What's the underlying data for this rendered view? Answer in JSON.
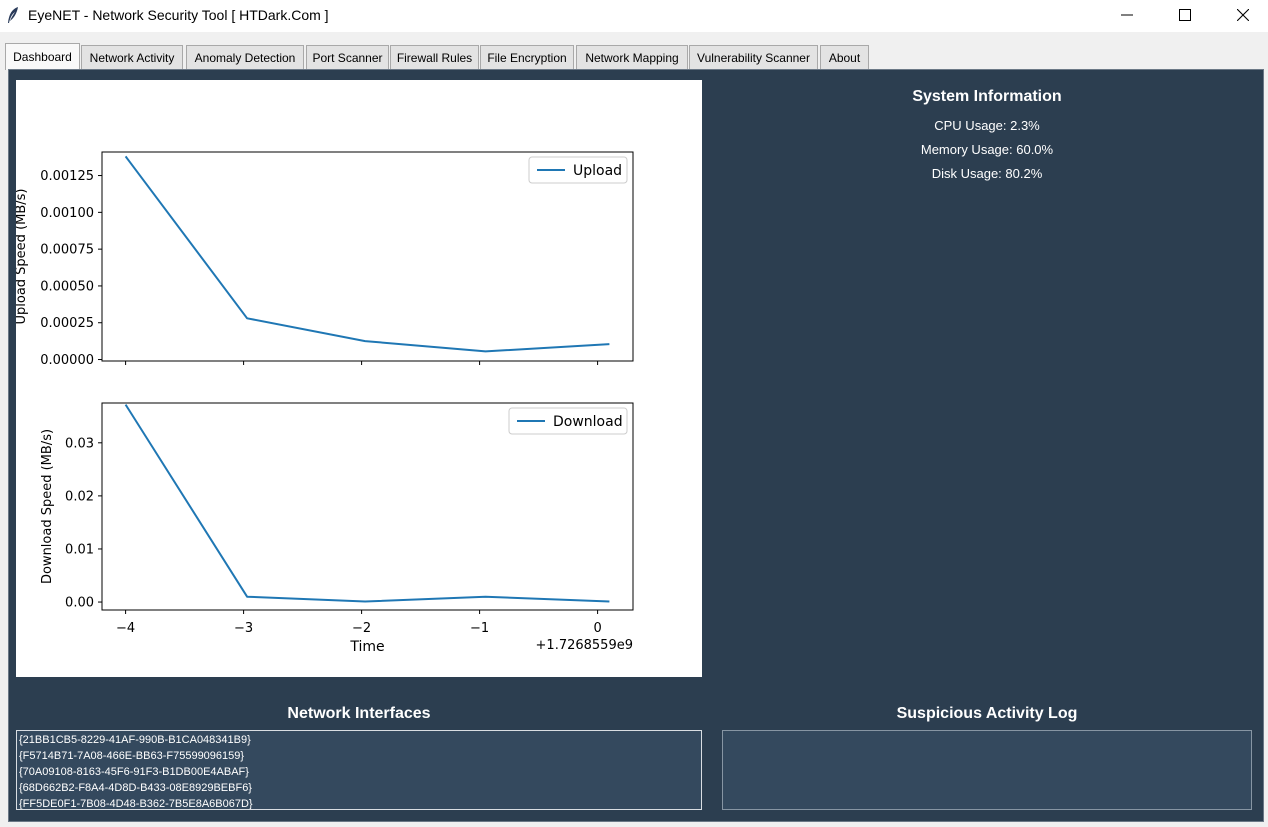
{
  "window": {
    "title": "EyeNET - Network Security Tool [ HTDark.Com ]",
    "controls": [
      "minimize",
      "maximize",
      "close"
    ]
  },
  "tabs": [
    {
      "label": "Dashboard",
      "active": true
    },
    {
      "label": "Network Activity",
      "active": false
    },
    {
      "label": "Anomaly Detection",
      "active": false
    },
    {
      "label": "Port Scanner",
      "active": false
    },
    {
      "label": "Firewall Rules",
      "active": false
    },
    {
      "label": "File Encryption",
      "active": false
    },
    {
      "label": "Network Mapping",
      "active": false
    },
    {
      "label": "Vulnerability Scanner",
      "active": false
    },
    {
      "label": "About",
      "active": false
    }
  ],
  "chart_data": [
    {
      "type": "line",
      "ylabel": "Upload Speed (MB/s)",
      "xlabel": "",
      "x": [
        -4,
        -2.97,
        -1.97,
        -0.95,
        0.1
      ],
      "series": [
        {
          "name": "Upload",
          "values": [
            0.00138,
            0.00028,
            0.000125,
            5.5e-05,
            0.000105
          ]
        }
      ],
      "ylim": [
        -1e-05,
        0.00141
      ],
      "xlim": [
        -4.2,
        0.3
      ],
      "yticks": [
        0.0,
        0.00025,
        0.0005,
        0.00075,
        0.001,
        0.00125
      ],
      "ytick_labels": [
        "0.00000",
        "0.00025",
        "0.00050",
        "0.00075",
        "0.00100",
        "0.00125"
      ],
      "xticks": [
        -4,
        -3,
        -2,
        -1,
        0
      ],
      "xtick_labels_shown": false,
      "legend": "top-right",
      "color": "#1f77b4",
      "grid": false
    },
    {
      "type": "line",
      "ylabel": "Download Speed (MB/s)",
      "xlabel": "Time",
      "x_offset_label": "+1.7268559e9",
      "x": [
        -4,
        -2.97,
        -1.97,
        -0.95,
        0.1
      ],
      "series": [
        {
          "name": "Download",
          "values": [
            0.0372,
            0.001,
            0.0001,
            0.001,
            0.0001
          ]
        }
      ],
      "ylim": [
        -0.0015,
        0.0375
      ],
      "xlim": [
        -4.2,
        0.3
      ],
      "yticks": [
        0.0,
        0.01,
        0.02,
        0.03
      ],
      "ytick_labels": [
        "0.00",
        "0.01",
        "0.02",
        "0.03"
      ],
      "xticks": [
        -4,
        -3,
        -2,
        -1,
        0
      ],
      "xtick_labels": [
        "−4",
        "−3",
        "−2",
        "−1",
        "0"
      ],
      "legend": "top-right",
      "color": "#1f77b4",
      "grid": false
    }
  ],
  "system_info": {
    "title": "System Information",
    "cpu": "CPU Usage: 2.3%",
    "memory": "Memory Usage: 60.0%",
    "disk": "Disk Usage: 80.2%"
  },
  "network_interfaces": {
    "title": "Network Interfaces",
    "items": [
      "{21BB1CB5-8229-41AF-990B-B1CA048341B9}",
      "{F5714B71-7A08-466E-BB63-F75599096159}",
      "{70A09108-8163-45F6-91F3-B1DB00E4ABAF}",
      "{68D662B2-F8A4-4D8D-B433-08E8929BEBF6}",
      "{FF5DE0F1-7B08-4D48-B362-7B5E8A6B067D}"
    ]
  },
  "suspicious_log": {
    "title": "Suspicious Activity Log",
    "entries": []
  },
  "colors": {
    "panel_bg": "#2c3e50",
    "list_bg": "#34495e",
    "line": "#1f77b4"
  },
  "icons": {
    "app": "feather-icon",
    "minimize": "minimize-icon",
    "maximize": "maximize-icon",
    "close": "close-icon"
  }
}
